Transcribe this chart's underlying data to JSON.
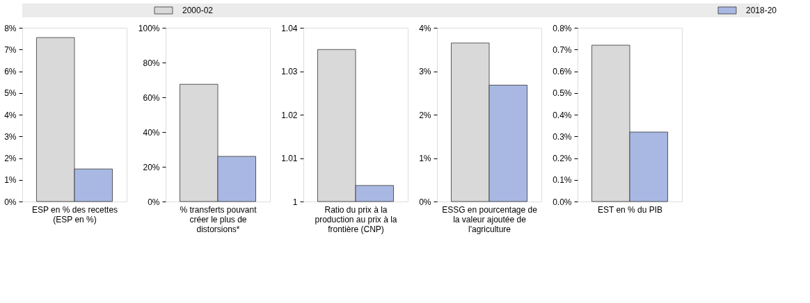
{
  "chart_data": [
    {
      "type": "bar",
      "categories": [
        "ESP en % des recettes (ESP en %)"
      ],
      "legend": "top",
      "grid": false,
      "series": [
        {
          "name": "2000-02",
          "color": "#d9d9d9",
          "values": [
            7.55
          ]
        },
        {
          "name": "2018-20",
          "color": "#a9b8e3",
          "values": [
            1.5
          ]
        }
      ],
      "ylim": [
        0,
        8
      ],
      "yticks": [
        {
          "value": 0,
          "label": "0%"
        },
        {
          "value": 1,
          "label": "1%"
        },
        {
          "value": 2,
          "label": "2%"
        },
        {
          "value": 3,
          "label": "3%"
        },
        {
          "value": 4,
          "label": "4%"
        },
        {
          "value": 5,
          "label": "5%"
        },
        {
          "value": 6,
          "label": "6%"
        },
        {
          "value": 7,
          "label": "7%"
        },
        {
          "value": 8,
          "label": "8%"
        }
      ]
    },
    {
      "type": "bar",
      "categories": [
        "% transferts pouvant créer le plus de distorsions*"
      ],
      "grid": false,
      "series": [
        {
          "name": "2000-02",
          "color": "#d9d9d9",
          "values": [
            67.5
          ]
        },
        {
          "name": "2018-20",
          "color": "#a9b8e3",
          "values": [
            26
          ]
        }
      ],
      "ylim": [
        0,
        100
      ],
      "yticks": [
        {
          "value": 0,
          "label": "0%"
        },
        {
          "value": 20,
          "label": "20%"
        },
        {
          "value": 40,
          "label": "40%"
        },
        {
          "value": 60,
          "label": "60%"
        },
        {
          "value": 80,
          "label": "80%"
        },
        {
          "value": 100,
          "label": "100%"
        }
      ]
    },
    {
      "type": "bar",
      "categories": [
        "Ratio du prix à la production au prix à la frontière (CNP)"
      ],
      "grid": false,
      "series": [
        {
          "name": "2000-02",
          "color": "#d9d9d9",
          "values": [
            1.035
          ]
        },
        {
          "name": "2018-20",
          "color": "#a9b8e3",
          "values": [
            1.0037
          ]
        }
      ],
      "ylim": [
        1,
        1.04
      ],
      "yticks": [
        1,
        1.01,
        1.02,
        1.03,
        1.04
      ]
    },
    {
      "type": "bar",
      "categories": [
        "ESSG en pourcentage de la valeur ajoutée de l'agriculture"
      ],
      "grid": false,
      "series": [
        {
          "name": "2000-02",
          "color": "#d9d9d9",
          "values": [
            3.65
          ]
        },
        {
          "name": "2018-20",
          "color": "#a9b8e3",
          "values": [
            2.68
          ]
        }
      ],
      "ylim": [
        0,
        4
      ],
      "yticks": [
        {
          "value": 0,
          "label": "0%"
        },
        {
          "value": 1,
          "label": "1%"
        },
        {
          "value": 2,
          "label": "2%"
        },
        {
          "value": 3,
          "label": "3%"
        },
        {
          "value": 4,
          "label": "4%"
        }
      ]
    },
    {
      "type": "bar",
      "categories": [
        "EST en % du PIB"
      ],
      "grid": false,
      "series": [
        {
          "name": "2000-02",
          "color": "#d9d9d9",
          "values": [
            0.72
          ]
        },
        {
          "name": "2018-20",
          "color": "#a9b8e3",
          "values": [
            0.32
          ]
        }
      ],
      "ylim": [
        0,
        0.8
      ],
      "yticks": [
        {
          "value": 0,
          "label": "0.0%"
        },
        {
          "value": 0.1,
          "label": "0.1%"
        },
        {
          "value": 0.2,
          "label": "0.2%"
        },
        {
          "value": 0.3,
          "label": "0.3%"
        },
        {
          "value": 0.4,
          "label": "0.4%"
        },
        {
          "value": 0.5,
          "label": "0.5%"
        },
        {
          "value": 0.6,
          "label": "0.6%"
        },
        {
          "value": 0.7,
          "label": "0.7%"
        },
        {
          "value": 0.8,
          "label": "0.8%"
        }
      ]
    }
  ]
}
